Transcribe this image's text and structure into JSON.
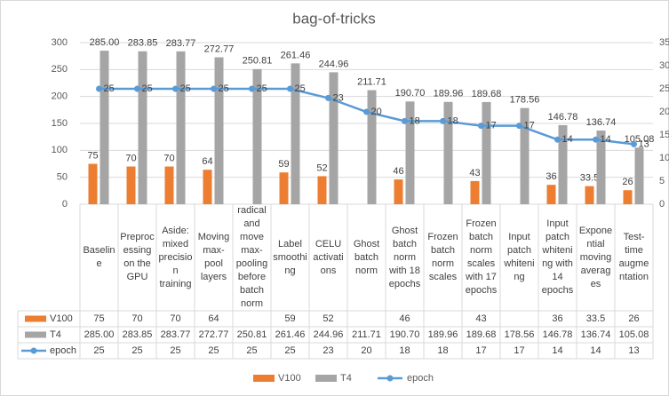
{
  "chart_data": {
    "type": "bar",
    "title": "bag-of-tricks",
    "categories": [
      "Baseline",
      "Preprocessing on the GPU",
      "Aside: mixed precision training",
      "Moving max-pool layers",
      "radical and move max-pooling before batch norm",
      "Label smoothing",
      "CELU activations",
      "Ghost batch norm",
      "Ghost batch norm with 18 epochs",
      "Frozen batch norm scales",
      "Frozen batch norm scales with 17 epochs",
      "Input patch whitening",
      "Input patch whitening with 14 epochs",
      "Exponential moving averages",
      "Test-time augmentation"
    ],
    "series": [
      {
        "name": "V100",
        "color": "#ed7d31",
        "values": [
          75,
          70,
          70,
          64,
          null,
          59,
          52,
          null,
          46,
          null,
          43,
          null,
          36,
          33.5,
          26
        ]
      },
      {
        "name": "T4",
        "color": "#a5a5a5",
        "values": [
          285,
          283.85,
          283.77,
          272.77,
          250.81,
          261.46,
          244.96,
          211.71,
          190.7,
          189.96,
          189.68,
          178.56,
          146.78,
          136.74,
          105.08
        ],
        "value_labels": [
          "285.00",
          "283.85",
          "283.77",
          "272.77",
          "250.81",
          "261.46",
          "244.96",
          "211.71",
          "190.70",
          "189.96",
          "189.68",
          "178.56",
          "146.78",
          "136.74",
          "105.08"
        ]
      },
      {
        "name": "epoch",
        "type": "line",
        "axis": "y2",
        "color": "#5b9bd5",
        "values": [
          25,
          25,
          25,
          25,
          25,
          25,
          23,
          20,
          18,
          18,
          17,
          17,
          14,
          14,
          13
        ]
      }
    ],
    "ylim": [
      0,
      300
    ],
    "yticks": [
      0,
      50,
      100,
      150,
      200,
      250,
      300
    ],
    "y2lim": [
      0,
      35
    ],
    "y2ticks": [
      0,
      5,
      10,
      15,
      20,
      25,
      30,
      35
    ],
    "grid": true,
    "data_table": true,
    "legend": "bottom"
  }
}
